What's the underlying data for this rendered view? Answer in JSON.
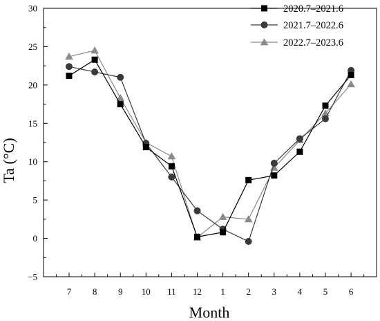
{
  "chart_data": {
    "type": "line",
    "xlabel": "Month",
    "ylabel": "Ta (°C)",
    "categories": [
      "7",
      "8",
      "9",
      "10",
      "11",
      "12",
      "1",
      "2",
      "3",
      "4",
      "5",
      "6"
    ],
    "yticks": [
      -5,
      0,
      5,
      10,
      15,
      20,
      25,
      30
    ],
    "ylim": [
      -5,
      30
    ],
    "grid": false,
    "legend_position": "top-right",
    "series": [
      {
        "name": "2020.7–2021.6",
        "marker": "square",
        "color": "#000000",
        "values": [
          21.2,
          23.3,
          17.5,
          11.9,
          9.4,
          0.2,
          0.8,
          7.6,
          8.2,
          11.3,
          17.3,
          21.3
        ]
      },
      {
        "name": "2021.7–2022.6",
        "marker": "circle",
        "color": "#3a3a3a",
        "values": [
          22.4,
          21.7,
          21.0,
          12.4,
          8.0,
          3.6,
          1.2,
          -0.4,
          9.8,
          13.0,
          15.6,
          21.9
        ]
      },
      {
        "name": "2022.7–2023.6",
        "marker": "triangle",
        "color": "#8a8a8a",
        "values": [
          23.7,
          24.5,
          18.3,
          12.5,
          10.7,
          0.1,
          2.8,
          2.5,
          9.2,
          12.8,
          16.3,
          20.1
        ]
      }
    ]
  }
}
